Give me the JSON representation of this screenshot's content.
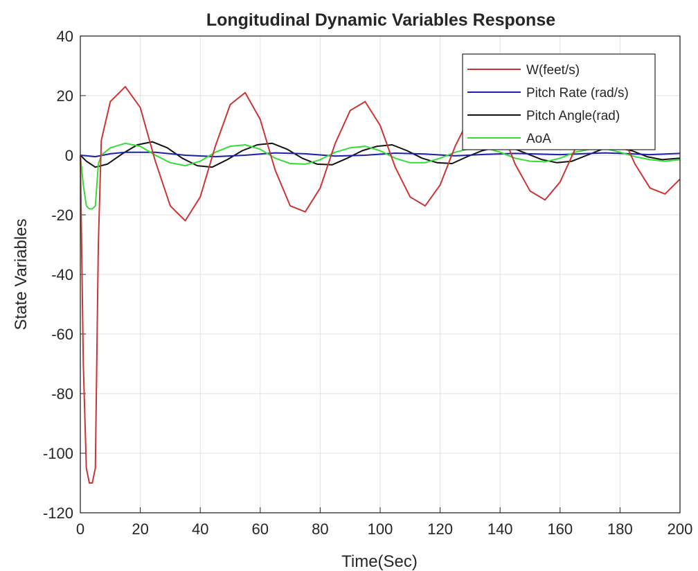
{
  "chart_data": {
    "type": "line",
    "title": "Longitudinal Dynamic Variables Response",
    "xlabel": "Time(Sec)",
    "ylabel": "State Variables",
    "xlim": [
      0,
      200
    ],
    "ylim": [
      -120,
      40
    ],
    "xticks": [
      0,
      20,
      40,
      60,
      80,
      100,
      120,
      140,
      160,
      180,
      200
    ],
    "yticks": [
      40,
      20,
      0,
      -20,
      -40,
      -60,
      -80,
      -100,
      -120
    ],
    "grid": true,
    "legend_position": "top-right",
    "series": [
      {
        "name": "W(feet/s)",
        "color": "#cc3333",
        "points": [
          [
            0,
            0
          ],
          [
            1,
            -70
          ],
          [
            2,
            -105
          ],
          [
            3,
            -110
          ],
          [
            4,
            -110
          ],
          [
            5,
            -105
          ],
          [
            6,
            -30
          ],
          [
            7,
            5
          ],
          [
            10,
            18
          ],
          [
            15,
            23
          ],
          [
            20,
            16
          ],
          [
            25,
            -2
          ],
          [
            30,
            -17
          ],
          [
            35,
            -22
          ],
          [
            40,
            -14
          ],
          [
            45,
            3
          ],
          [
            50,
            17
          ],
          [
            55,
            21
          ],
          [
            60,
            12
          ],
          [
            65,
            -5
          ],
          [
            70,
            -17
          ],
          [
            75,
            -19
          ],
          [
            80,
            -11
          ],
          [
            85,
            4
          ],
          [
            90,
            15
          ],
          [
            95,
            18
          ],
          [
            100,
            10
          ],
          [
            105,
            -4
          ],
          [
            110,
            -14
          ],
          [
            115,
            -17
          ],
          [
            120,
            -10
          ],
          [
            125,
            3
          ],
          [
            130,
            13
          ],
          [
            135,
            16
          ],
          [
            140,
            10
          ],
          [
            145,
            -3
          ],
          [
            150,
            -12
          ],
          [
            155,
            -15
          ],
          [
            160,
            -9
          ],
          [
            165,
            2
          ],
          [
            170,
            11
          ],
          [
            175,
            14
          ],
          [
            180,
            8
          ],
          [
            185,
            -3
          ],
          [
            190,
            -11
          ],
          [
            195,
            -13
          ],
          [
            200,
            -8
          ]
        ]
      },
      {
        "name": "Pitch Rate (rad/s)",
        "color": "#1f1fa8",
        "points": [
          [
            0,
            0
          ],
          [
            5,
            -0.5
          ],
          [
            10,
            0.5
          ],
          [
            15,
            1
          ],
          [
            25,
            1
          ],
          [
            35,
            0
          ],
          [
            45,
            -0.5
          ],
          [
            55,
            0
          ],
          [
            65,
            0.8
          ],
          [
            75,
            0.5
          ],
          [
            85,
            -0.3
          ],
          [
            95,
            0
          ],
          [
            105,
            0.7
          ],
          [
            115,
            0.4
          ],
          [
            125,
            -0.2
          ],
          [
            135,
            0.3
          ],
          [
            145,
            0.6
          ],
          [
            160,
            0.2
          ],
          [
            175,
            0.8
          ],
          [
            190,
            0.2
          ],
          [
            200,
            0.6
          ]
        ]
      },
      {
        "name": "Pitch Angle(rad)",
        "color": "#111111",
        "points": [
          [
            0,
            0
          ],
          [
            2,
            -2
          ],
          [
            5,
            -4
          ],
          [
            9,
            -3
          ],
          [
            14,
            0.5
          ],
          [
            19,
            3.5
          ],
          [
            24,
            4.5
          ],
          [
            29,
            2.5
          ],
          [
            34,
            -1
          ],
          [
            39,
            -3.5
          ],
          [
            44,
            -4
          ],
          [
            49,
            -1.5
          ],
          [
            54,
            1.5
          ],
          [
            59,
            3.5
          ],
          [
            64,
            4
          ],
          [
            69,
            2
          ],
          [
            74,
            -1
          ],
          [
            79,
            -3
          ],
          [
            84,
            -3.2
          ],
          [
            89,
            -1
          ],
          [
            94,
            1.5
          ],
          [
            99,
            3
          ],
          [
            104,
            3.5
          ],
          [
            109,
            1.5
          ],
          [
            114,
            -1
          ],
          [
            119,
            -2.5
          ],
          [
            124,
            -2.8
          ],
          [
            129,
            -0.5
          ],
          [
            134,
            1.5
          ],
          [
            139,
            2.8
          ],
          [
            144,
            2.5
          ],
          [
            149,
            0.5
          ],
          [
            154,
            -1.5
          ],
          [
            159,
            -2.5
          ],
          [
            164,
            -2
          ],
          [
            169,
            0
          ],
          [
            174,
            2
          ],
          [
            179,
            2.5
          ],
          [
            184,
            1.5
          ],
          [
            189,
            -0.5
          ],
          [
            194,
            -1.5
          ],
          [
            200,
            -1
          ]
        ]
      },
      {
        "name": "AoA",
        "color": "#33dd33",
        "points": [
          [
            0,
            0
          ],
          [
            1,
            -10
          ],
          [
            2,
            -17
          ],
          [
            3,
            -18
          ],
          [
            4,
            -18
          ],
          [
            5,
            -17
          ],
          [
            6,
            -3
          ],
          [
            7,
            0
          ],
          [
            10,
            2.5
          ],
          [
            15,
            4
          ],
          [
            20,
            3
          ],
          [
            25,
            0
          ],
          [
            30,
            -2.5
          ],
          [
            35,
            -3.5
          ],
          [
            40,
            -2
          ],
          [
            45,
            1
          ],
          [
            50,
            3
          ],
          [
            55,
            3.5
          ],
          [
            60,
            2
          ],
          [
            65,
            -1
          ],
          [
            70,
            -2.8
          ],
          [
            75,
            -3
          ],
          [
            80,
            -1.5
          ],
          [
            85,
            1
          ],
          [
            90,
            2.5
          ],
          [
            95,
            3
          ],
          [
            100,
            1.5
          ],
          [
            105,
            -1
          ],
          [
            110,
            -2.5
          ],
          [
            115,
            -2.5
          ],
          [
            120,
            -1
          ],
          [
            125,
            1
          ],
          [
            130,
            2.2
          ],
          [
            135,
            2.5
          ],
          [
            140,
            1
          ],
          [
            145,
            -1
          ],
          [
            150,
            -2
          ],
          [
            155,
            -2.2
          ],
          [
            160,
            -1
          ],
          [
            165,
            1
          ],
          [
            170,
            2
          ],
          [
            175,
            2.2
          ],
          [
            180,
            1
          ],
          [
            185,
            -0.5
          ],
          [
            190,
            -1.5
          ],
          [
            195,
            -2
          ],
          [
            200,
            -1.5
          ]
        ]
      }
    ]
  }
}
